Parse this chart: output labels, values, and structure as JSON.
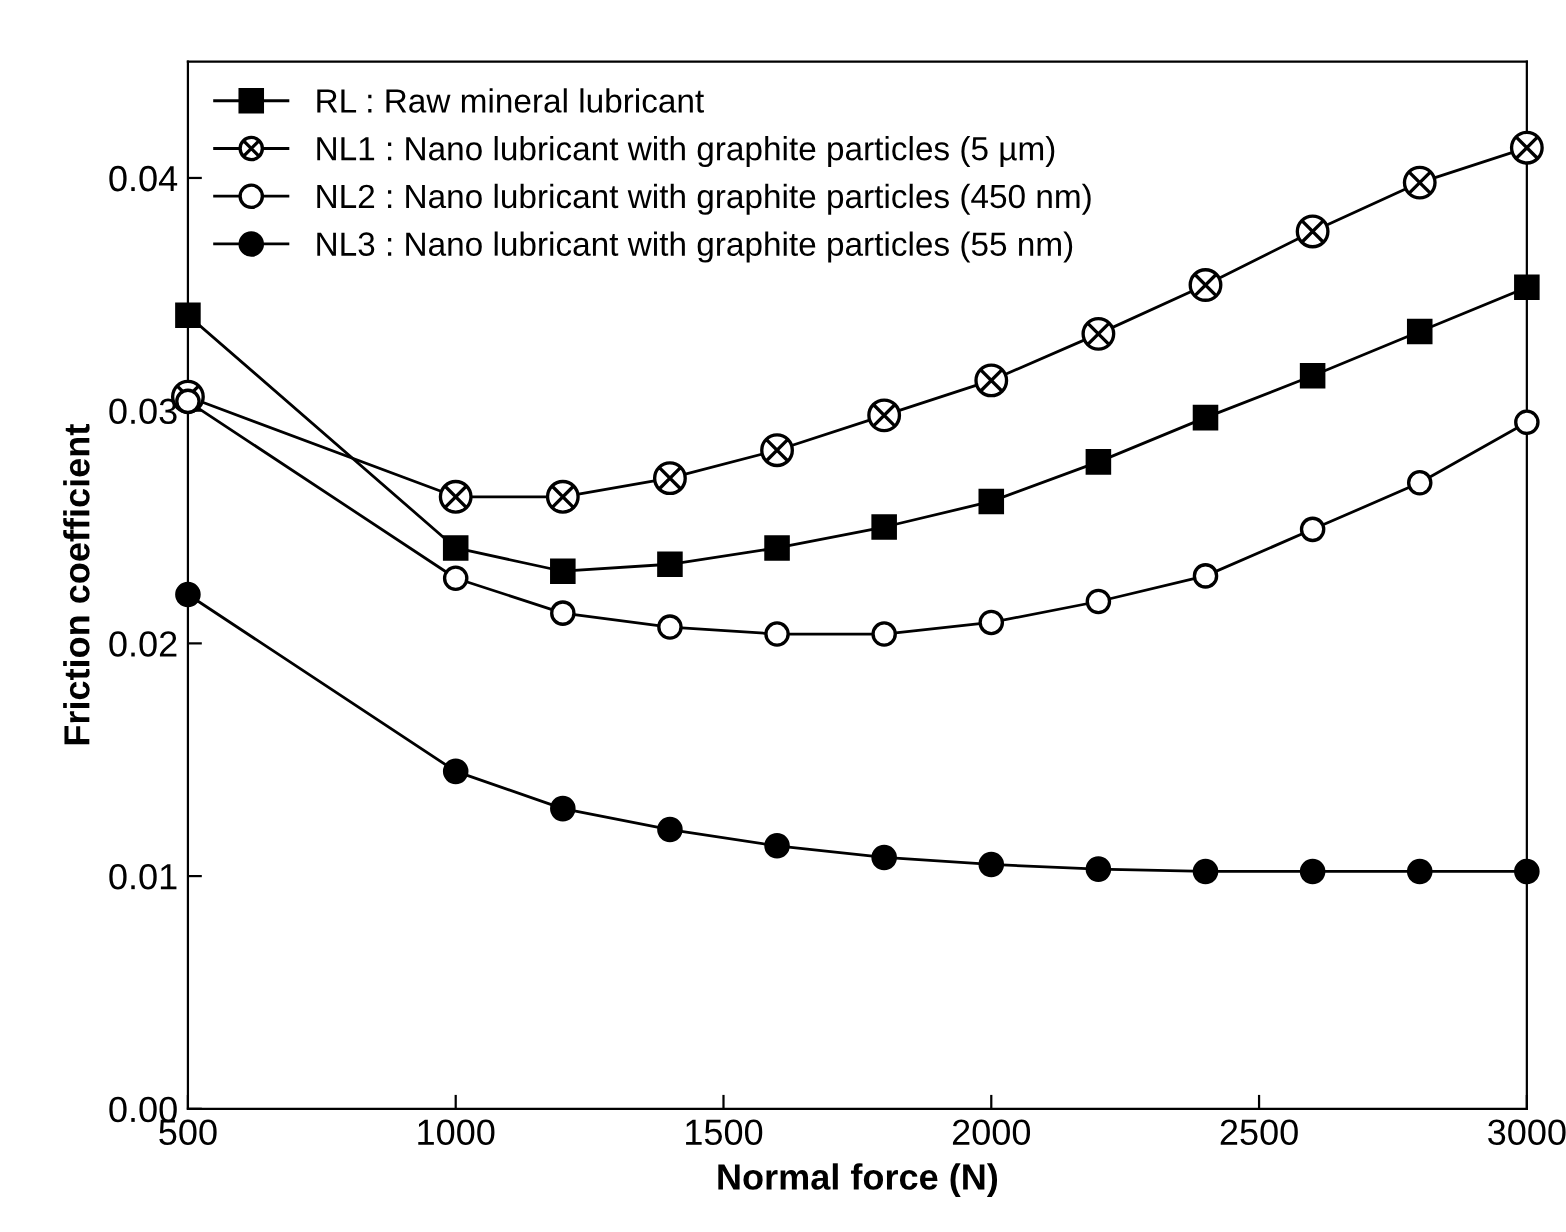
{
  "chart_data": {
    "type": "line",
    "xlabel": "Normal force (N)",
    "ylabel": "Friction coefficient",
    "x": [
      500,
      1000,
      1200,
      1400,
      1600,
      1800,
      2000,
      2200,
      2400,
      2600,
      2800,
      3000
    ],
    "series": [
      {
        "name": "RL : Raw mineral lubricant",
        "color": "#000000",
        "marker": "square",
        "values": [
          0.0341,
          0.0241,
          0.0231,
          0.0234,
          0.0241,
          0.025,
          0.0261,
          0.0278,
          0.0297,
          0.0315,
          0.0334,
          0.0353
        ]
      },
      {
        "name": "NL1 : Nano lubricant with graphite particles (5 µm)",
        "color": "#000000",
        "marker": "cross",
        "colors": [
          "#ffffff",
          "#ffffff",
          "#ffffff",
          "#ffffff",
          "#ffffff",
          "#ffffff",
          "#ffffff",
          "#ffffff",
          "#ffffff",
          "#ffffff",
          "#ffffff",
          "#ffffff"
        ],
        "values": [
          0.0306,
          0.0263,
          0.0263,
          0.0271,
          0.0283,
          0.0298,
          0.0313,
          0.0333,
          0.0354,
          0.0377,
          0.0398,
          0.0413
        ]
      },
      {
        "name": "NL2 : Nano lubricant with graphite particles (450 nm)",
        "color": "#000000",
        "marker": "circle",
        "colors": [
          "#ffffff",
          "#ffffff",
          "#ffffff",
          "#ffffff",
          "#ffffff",
          "#ffffff",
          "#ffffff",
          "#ffffff",
          "#ffffff",
          "#ffffff",
          "#ffffff",
          "#ffffff"
        ],
        "values": [
          0.0304,
          0.0228,
          0.0213,
          0.0207,
          0.0204,
          0.0204,
          0.0209,
          0.0218,
          0.0229,
          0.0249,
          0.0269,
          0.0295
        ]
      },
      {
        "name": "NL3 : Nano lubricant with graphite particles (55 nm)",
        "color": "#000000",
        "marker": "circle",
        "values": [
          0.0221,
          0.0145,
          0.0129,
          0.012,
          0.0113,
          0.0108,
          0.0105,
          0.0103,
          0.0102,
          0.0102,
          0.0102,
          0.0102
        ]
      }
    ],
    "xlim": [
      500,
      3000
    ],
    "xticks": [
      500,
      1000,
      1500,
      2000,
      2500,
      3000
    ],
    "ylim": [
      0,
      0.045
    ],
    "yticks": [
      {
        "value": 0,
        "label": "0.00"
      },
      {
        "value": 0.01,
        "label": "0.01"
      },
      {
        "value": 0.02,
        "label": "0.02"
      },
      {
        "value": 0.03,
        "label": "0.03"
      },
      {
        "value": 0.04,
        "label": "0.04"
      }
    ],
    "grid": false,
    "legend": "top left",
    "line_style": "solid"
  }
}
